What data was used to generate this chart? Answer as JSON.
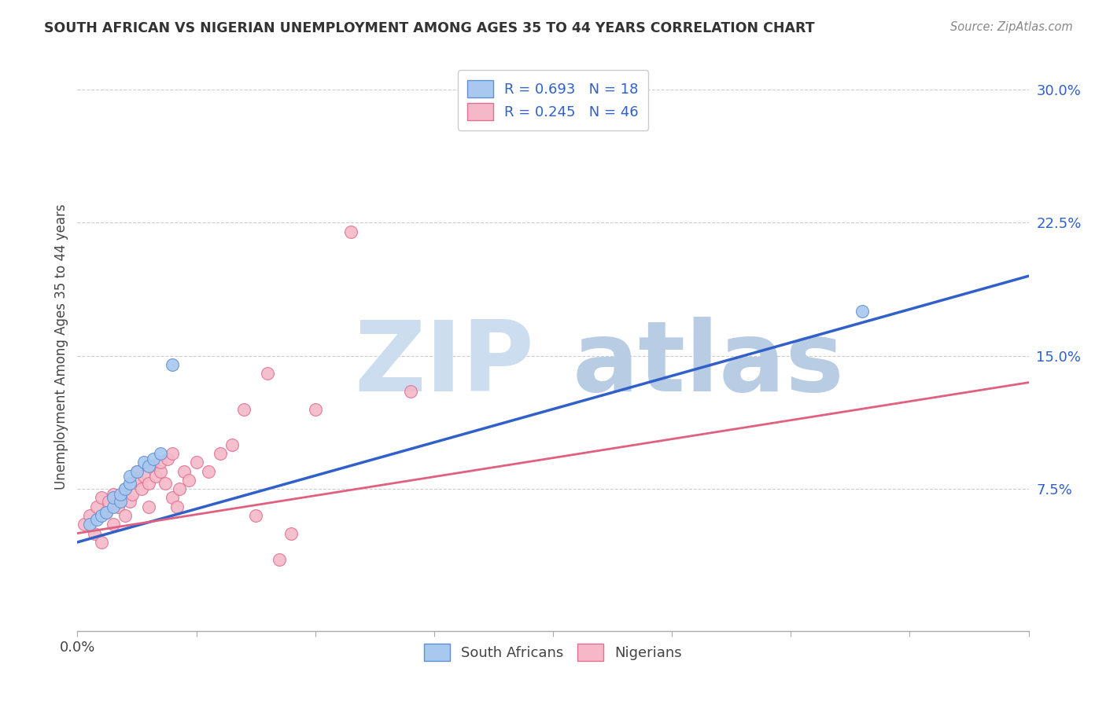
{
  "title": "SOUTH AFRICAN VS NIGERIAN UNEMPLOYMENT AMONG AGES 35 TO 44 YEARS CORRELATION CHART",
  "source": "Source: ZipAtlas.com",
  "ylabel": "Unemployment Among Ages 35 to 44 years",
  "xlim": [
    0.0,
    0.4
  ],
  "ylim": [
    -0.005,
    0.315
  ],
  "xtick_vals": [
    0.0,
    0.05,
    0.1,
    0.15,
    0.2,
    0.25,
    0.3,
    0.35,
    0.4
  ],
  "xtick_labels_show": {
    "0.0": "0.0%"
  },
  "yticks_right": [
    0.075,
    0.15,
    0.225,
    0.3
  ],
  "ytick_right_labels": [
    "7.5%",
    "15.0%",
    "22.5%",
    "30.0%"
  ],
  "watermark_zip": "ZIP",
  "watermark_atlas": "atlas",
  "legend_blue_label": "R = 0.693   N = 18",
  "legend_pink_label": "R = 0.245   N = 46",
  "legend_bottom_blue": "South Africans",
  "legend_bottom_pink": "Nigerians",
  "blue_scatter_x": [
    0.005,
    0.008,
    0.01,
    0.012,
    0.015,
    0.015,
    0.018,
    0.018,
    0.02,
    0.022,
    0.022,
    0.025,
    0.028,
    0.03,
    0.032,
    0.035,
    0.04,
    0.33
  ],
  "blue_scatter_y": [
    0.055,
    0.058,
    0.06,
    0.062,
    0.065,
    0.07,
    0.068,
    0.072,
    0.075,
    0.078,
    0.082,
    0.085,
    0.09,
    0.088,
    0.092,
    0.095,
    0.145,
    0.175
  ],
  "pink_scatter_x": [
    0.003,
    0.005,
    0.007,
    0.008,
    0.01,
    0.01,
    0.012,
    0.013,
    0.015,
    0.015,
    0.017,
    0.018,
    0.02,
    0.02,
    0.022,
    0.023,
    0.025,
    0.025,
    0.027,
    0.028,
    0.03,
    0.03,
    0.032,
    0.033,
    0.035,
    0.035,
    0.037,
    0.038,
    0.04,
    0.04,
    0.042,
    0.043,
    0.045,
    0.047,
    0.05,
    0.055,
    0.06,
    0.065,
    0.07,
    0.075,
    0.08,
    0.085,
    0.09,
    0.1,
    0.115,
    0.14
  ],
  "pink_scatter_y": [
    0.055,
    0.06,
    0.05,
    0.065,
    0.045,
    0.07,
    0.062,
    0.068,
    0.055,
    0.072,
    0.065,
    0.07,
    0.06,
    0.075,
    0.068,
    0.072,
    0.08,
    0.085,
    0.075,
    0.082,
    0.065,
    0.078,
    0.088,
    0.082,
    0.085,
    0.09,
    0.078,
    0.092,
    0.07,
    0.095,
    0.065,
    0.075,
    0.085,
    0.08,
    0.09,
    0.085,
    0.095,
    0.1,
    0.12,
    0.06,
    0.14,
    0.035,
    0.05,
    0.12,
    0.22,
    0.13
  ],
  "blue_color": "#a8c8f0",
  "blue_edge_color": "#6090d0",
  "blue_line_color": "#3060c8",
  "pink_color": "#f4b8c8",
  "pink_edge_color": "#e07090",
  "pink_line_color": "#e06080",
  "watermark_color": "#ddeeff",
  "blue_line_start_x": 0.0,
  "blue_line_end_x": 0.4,
  "blue_line_start_y": 0.045,
  "blue_line_end_y": 0.195,
  "pink_line_start_x": 0.0,
  "pink_line_end_x": 0.4,
  "pink_line_start_y": 0.05,
  "pink_line_end_y": 0.135
}
